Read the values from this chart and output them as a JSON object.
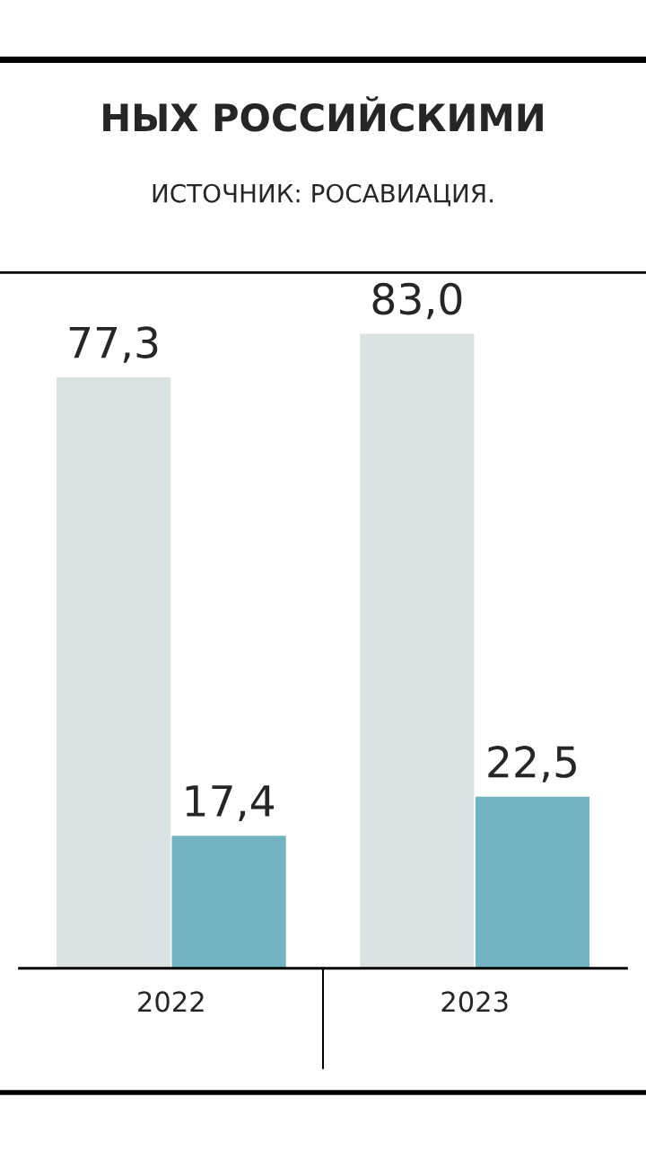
{
  "chart_data": {
    "type": "bar",
    "title": "НЫХ РОССИЙСКИМИ",
    "annotations": [
      "ИСТОЧНИК: РОСАВИАЦИЯ."
    ],
    "categories": [
      "2022",
      "2023"
    ],
    "series": [
      {
        "color": "#dbe2e2",
        "values": [
          77.3,
          83.0
        ],
        "value_labels": [
          "77,3",
          "83,0"
        ]
      },
      {
        "color": "#71b3bf",
        "values": [
          17.4,
          22.5
        ],
        "value_labels": [
          "17,4",
          "22,5"
        ]
      }
    ],
    "tick_labels": "x",
    "grid": false,
    "legend": false
  }
}
